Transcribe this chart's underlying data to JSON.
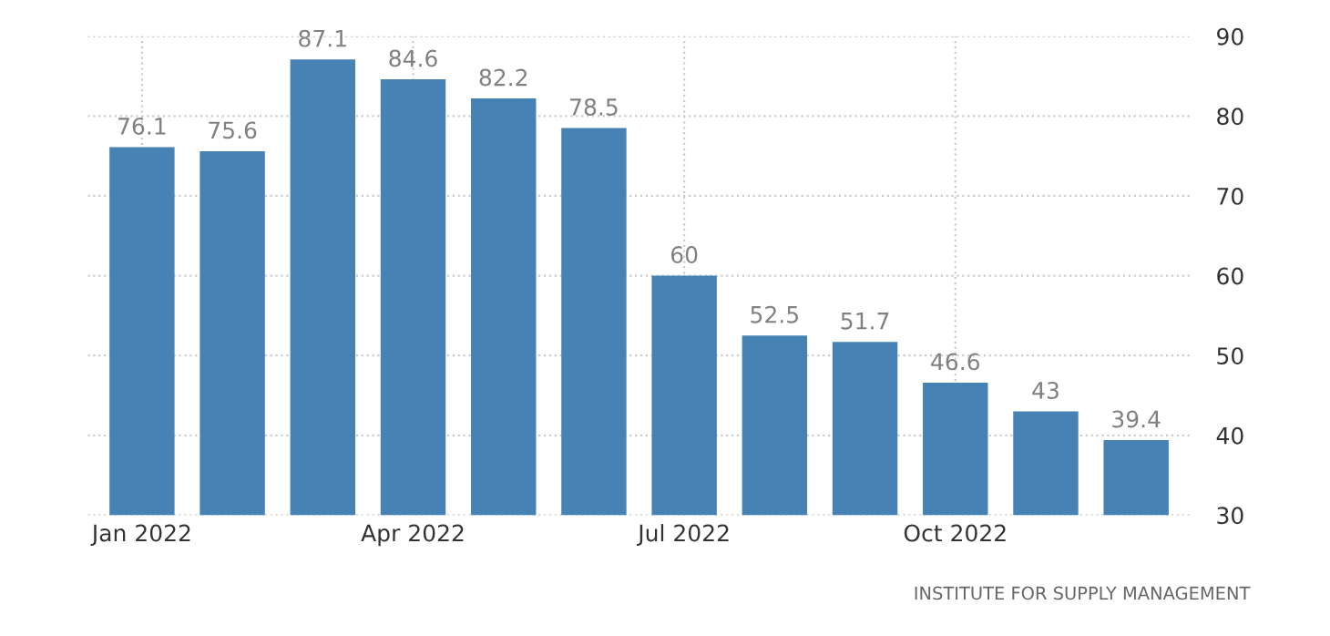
{
  "chart_data": {
    "type": "bar",
    "categories": [
      "Jan 2022",
      null,
      null,
      "Apr 2022",
      null,
      null,
      "Jul 2022",
      null,
      null,
      "Oct 2022",
      null,
      null
    ],
    "values": [
      76.1,
      75.6,
      87.1,
      84.6,
      82.2,
      78.5,
      60,
      52.5,
      51.7,
      46.6,
      43,
      39.4
    ],
    "color": "#4682b4",
    "ylim": [
      30,
      90
    ],
    "yticks": [
      30,
      40,
      50,
      60,
      70,
      80,
      90
    ],
    "grid": true,
    "data_labels": true,
    "annotations": [
      "INSTITUTE FOR SUPPLY MANAGEMENT"
    ]
  }
}
